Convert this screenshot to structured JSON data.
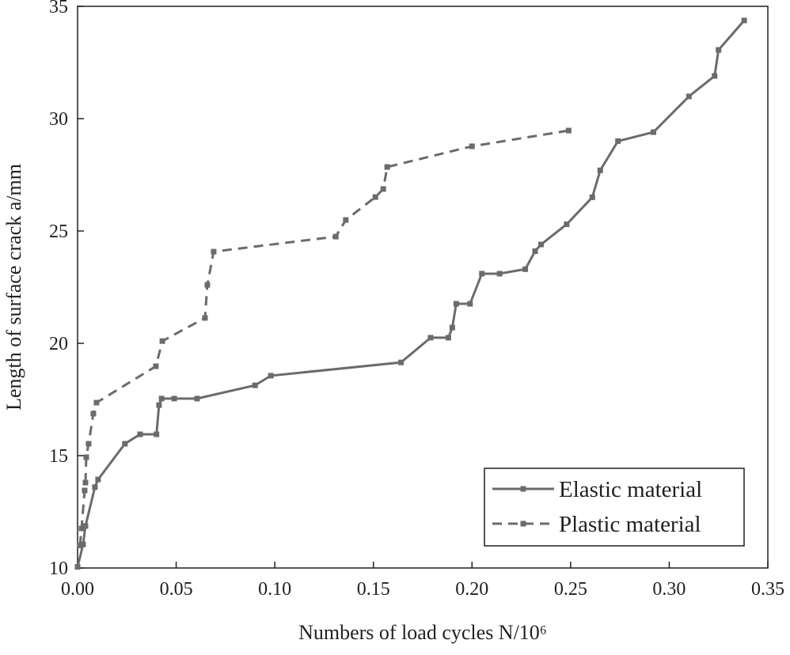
{
  "chart_data": {
    "type": "line",
    "x_label": "Numbers of load cycles N/10⁶",
    "y_label": "Length of surface crack a/mm",
    "xlim": [
      0,
      0.35
    ],
    "ylim": [
      10,
      35
    ],
    "xticks": [
      {
        "value": 0,
        "label": "0.00"
      },
      {
        "value": 0.05,
        "label": "0.05"
      },
      {
        "value": 0.1,
        "label": "0.10"
      },
      {
        "value": 0.15,
        "label": "0.15"
      },
      {
        "value": 0.2,
        "label": "0.20"
      },
      {
        "value": 0.25,
        "label": "0.25"
      },
      {
        "value": 0.3,
        "label": "0.30"
      },
      {
        "value": 0.35,
        "label": "0.35"
      }
    ],
    "yticks": [
      10,
      15,
      20,
      25,
      30,
      35
    ],
    "legend": "lower right",
    "series": [
      {
        "name": "Elastic material",
        "color": "#6b6b6b",
        "dash": "solid",
        "x": [
          0,
          0.0028,
          0.004,
          0.0088,
          0.0104,
          0.024,
          0.0317,
          0.04,
          0.0413,
          0.0426,
          0.049,
          0.0606,
          0.09,
          0.098,
          0.164,
          0.179,
          0.188,
          0.19,
          0.192,
          0.199,
          0.205,
          0.214,
          0.227,
          0.232,
          0.235,
          0.248,
          0.261,
          0.265,
          0.274,
          0.292,
          0.31,
          0.323,
          0.325,
          0.338
        ],
        "values": [
          10.05,
          11.05,
          11.87,
          13.6,
          13.94,
          15.53,
          15.95,
          15.95,
          17.25,
          17.54,
          17.54,
          17.54,
          18.13,
          18.56,
          19.15,
          20.25,
          20.25,
          20.7,
          21.76,
          21.76,
          23.1,
          23.1,
          23.3,
          24.1,
          24.4,
          25.3,
          26.5,
          27.7,
          29.0,
          29.4,
          30.99,
          31.9,
          33.06,
          34.37
        ]
      },
      {
        "name": "Plastic material",
        "color": "#6b6b6b",
        "dash": "dashed",
        "x": [
          0.0012,
          0.002,
          0.0036,
          0.004,
          0.0044,
          0.0056,
          0.008,
          0.0096,
          0.0397,
          0.043,
          0.0646,
          0.0658,
          0.069,
          0.1309,
          0.136,
          0.151,
          0.155,
          0.157,
          0.2,
          0.249
        ],
        "values": [
          11.0,
          11.76,
          13.45,
          13.8,
          14.93,
          15.53,
          16.87,
          17.36,
          18.98,
          20.1,
          21.13,
          22.6,
          24.08,
          24.75,
          25.49,
          26.51,
          26.87,
          27.85,
          28.77,
          29.47
        ]
      }
    ]
  }
}
